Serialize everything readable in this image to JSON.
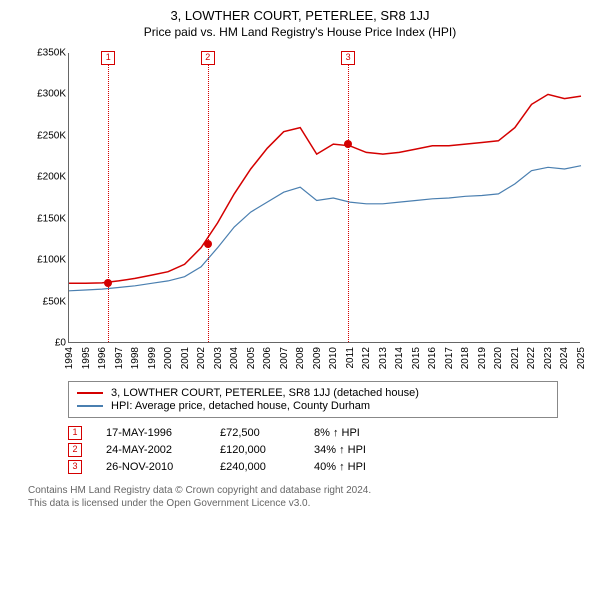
{
  "title": "3, LOWTHER COURT, PETERLEE, SR8 1JJ",
  "subtitle": "Price paid vs. HM Land Registry's House Price Index (HPI)",
  "chart": {
    "type": "line",
    "background_color": "#ffffff",
    "axis_color": "#666666",
    "xlim": [
      1994,
      2025
    ],
    "ylim": [
      0,
      350000
    ],
    "ytick_step": 50000,
    "yticks": [
      "£0",
      "£50K",
      "£100K",
      "£150K",
      "£200K",
      "£250K",
      "£300K",
      "£350K"
    ],
    "xticks": [
      "1994",
      "1995",
      "1996",
      "1997",
      "1998",
      "1999",
      "2000",
      "2001",
      "2002",
      "2003",
      "2004",
      "2005",
      "2006",
      "2007",
      "2008",
      "2009",
      "2010",
      "2011",
      "2012",
      "2013",
      "2014",
      "2015",
      "2016",
      "2017",
      "2018",
      "2019",
      "2020",
      "2021",
      "2022",
      "2023",
      "2024",
      "2025"
    ],
    "xtick_fontsize": 10,
    "ytick_fontsize": 10,
    "series": [
      {
        "name": "3, LOWTHER COURT, PETERLEE, SR8 1JJ (detached house)",
        "color": "#d40000",
        "line_width": 1.5,
        "x": [
          1994,
          1995,
          1996,
          1997,
          1998,
          1999,
          2000,
          2001,
          2002,
          2003,
          2004,
          2005,
          2006,
          2007,
          2008,
          2009,
          2010,
          2011,
          2012,
          2013,
          2014,
          2015,
          2016,
          2017,
          2018,
          2019,
          2020,
          2021,
          2022,
          2023,
          2024,
          2025
        ],
        "y": [
          72000,
          72000,
          72500,
          75000,
          78000,
          82000,
          86000,
          95000,
          115000,
          145000,
          180000,
          210000,
          235000,
          255000,
          260000,
          228000,
          240000,
          238000,
          230000,
          228000,
          230000,
          234000,
          238000,
          238000,
          240000,
          242000,
          244000,
          260000,
          288000,
          300000,
          295000,
          298000
        ]
      },
      {
        "name": "HPI: Average price, detached house, County Durham",
        "color": "#4a7fb0",
        "line_width": 1.2,
        "x": [
          1994,
          1995,
          1996,
          1997,
          1998,
          1999,
          2000,
          2001,
          2002,
          2003,
          2004,
          2005,
          2006,
          2007,
          2008,
          2009,
          2010,
          2011,
          2012,
          2013,
          2014,
          2015,
          2016,
          2017,
          2018,
          2019,
          2020,
          2021,
          2022,
          2023,
          2024,
          2025
        ],
        "y": [
          63000,
          64000,
          65000,
          67000,
          69000,
          72000,
          75000,
          80000,
          92000,
          115000,
          140000,
          158000,
          170000,
          182000,
          188000,
          172000,
          175000,
          170000,
          168000,
          168000,
          170000,
          172000,
          174000,
          175000,
          177000,
          178000,
          180000,
          192000,
          208000,
          212000,
          210000,
          214000
        ]
      }
    ],
    "markers": [
      {
        "n": "1",
        "x": 1996.38,
        "y": 72500,
        "vline_color": "#d40000"
      },
      {
        "n": "2",
        "x": 2002.4,
        "y": 120000,
        "vline_color": "#d40000"
      },
      {
        "n": "3",
        "x": 2010.9,
        "y": 240000,
        "vline_color": "#d40000"
      }
    ],
    "marker_box_color": "#d40000"
  },
  "legend": {
    "border_color": "#888888",
    "items": [
      {
        "color": "#d40000",
        "label": "3, LOWTHER COURT, PETERLEE, SR8 1JJ (detached house)"
      },
      {
        "color": "#4a7fb0",
        "label": "HPI: Average price, detached house, County Durham"
      }
    ]
  },
  "data_rows": [
    {
      "n": "1",
      "date": "17-MAY-1996",
      "price": "£72,500",
      "pct": "8% ↑ HPI"
    },
    {
      "n": "2",
      "date": "24-MAY-2002",
      "price": "£120,000",
      "pct": "34% ↑ HPI"
    },
    {
      "n": "3",
      "date": "26-NOV-2010",
      "price": "£240,000",
      "pct": "40% ↑ HPI"
    }
  ],
  "footer": {
    "line1": "Contains HM Land Registry data © Crown copyright and database right 2024.",
    "line2": "This data is licensed under the Open Government Licence v3.0."
  }
}
